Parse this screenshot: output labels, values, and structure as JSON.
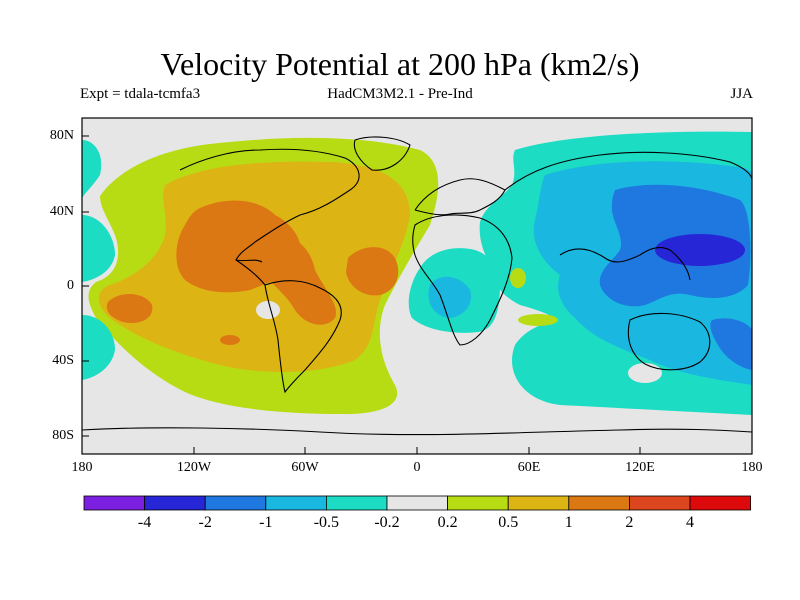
{
  "title": "Velocity Potential at 200 hPa (km2/s)",
  "subtitle_left": "Expt = tdala-tcmfa3",
  "subtitle_center": "HadCM3M2.1 - Pre-Ind",
  "subtitle_right": "JJA",
  "lat_labels": [
    "80N",
    "40N",
    "0",
    "40S",
    "80S"
  ],
  "lon_labels": [
    "180",
    "120W",
    "60W",
    "0",
    "60E",
    "120E",
    "180"
  ],
  "colorbar": {
    "labels": [
      "-4",
      "-2",
      "-1",
      "-0.5",
      "-0.2",
      "0.2",
      "0.5",
      "1",
      "2",
      "4"
    ],
    "colors": [
      "#7b1fe0",
      "#2626d6",
      "#1e78e0",
      "#1ab7e0",
      "#1cdcc4",
      "#e6e6e6",
      "#b8dc14",
      "#dcb414",
      "#dc7814",
      "#dc461e",
      "#dc0a0a"
    ]
  },
  "palette": {
    "neutral": "#e6e6e6",
    "cyan": "#1cdcc4",
    "lightblue": "#1ab7e0",
    "blue": "#1e78e0",
    "darkblue": "#2626d6",
    "yellowgreen": "#b8dc14",
    "gold": "#dcb414",
    "orange": "#dc7814"
  }
}
